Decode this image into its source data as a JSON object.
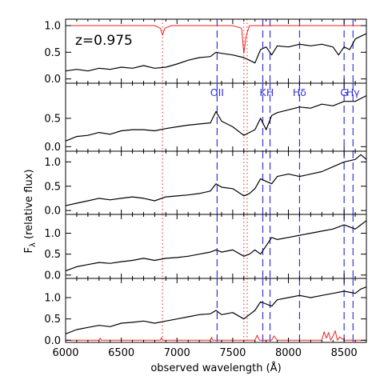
{
  "figure": {
    "redshift_label": "z=0.975",
    "xlabel": "observed wavelength (Å)",
    "ylabel_main": "F",
    "ylabel_sub": "λ",
    "ylabel_rest": " (relative flux)"
  },
  "chart_data": {
    "type": "line",
    "xlim": [
      6000,
      8700
    ],
    "x_ticks": [
      6000,
      6500,
      7000,
      7500,
      8000,
      8500
    ],
    "x_tick_labels": [
      "6000",
      "6500",
      "7000",
      "7500",
      "8000",
      "8500"
    ],
    "xlabel": "observed wavelength (Å)",
    "ylabel": "Fλ (relative flux)",
    "colors": {
      "spectrum": "#000000",
      "sky": "#ee2222",
      "line_marker": "#3333dd",
      "telluric_marker": "#ee2222"
    },
    "spectral_lines": [
      {
        "name": "OII",
        "wavelength": 7360
      },
      {
        "name": "K",
        "wavelength": 7770
      },
      {
        "name": "H",
        "wavelength": 7835
      },
      {
        "name": "Hδ",
        "wavelength": 8100
      },
      {
        "name": "G",
        "wavelength": 8500
      },
      {
        "name": "Hγ",
        "wavelength": 8580
      }
    ],
    "line_label_panel": 2,
    "telluric_lines": [
      6870,
      7600,
      7630
    ],
    "panels": [
      {
        "ylim": [
          -0.08,
          1.12
        ],
        "yticks": [
          0.0,
          0.5,
          1.0
        ],
        "ytick_labels": [
          "0.0",
          "0.5",
          "1.0"
        ],
        "has_redshift_label": true,
        "series": [
          {
            "role": "spectrum",
            "x": [
              6000,
              6100,
              6200,
              6300,
              6400,
              6500,
              6600,
              6700,
              6800,
              6900,
              7000,
              7100,
              7200,
              7300,
              7350,
              7400,
              7500,
              7600,
              7650,
              7700,
              7750,
              7800,
              7850,
              7900,
              8000,
              8100,
              8200,
              8300,
              8400,
              8450,
              8500,
              8550,
              8600,
              8650,
              8700
            ],
            "y": [
              0.15,
              0.18,
              0.15,
              0.2,
              0.18,
              0.22,
              0.2,
              0.25,
              0.2,
              0.22,
              0.28,
              0.35,
              0.4,
              0.42,
              0.5,
              0.48,
              0.45,
              0.4,
              0.35,
              0.3,
              0.55,
              0.6,
              0.45,
              0.62,
              0.6,
              0.65,
              0.62,
              0.65,
              0.6,
              0.45,
              0.6,
              0.55,
              0.75,
              0.8,
              0.85
            ]
          },
          {
            "role": "sky",
            "x": [
              6000,
              6500,
              6800,
              6850,
              6870,
              6890,
              6950,
              7500,
              7580,
              7600,
              7620,
              7650,
              7700,
              8000,
              8500,
              8700
            ],
            "y": [
              1.0,
              1.0,
              1.0,
              0.95,
              0.82,
              0.95,
              1.0,
              1.0,
              0.95,
              0.48,
              0.8,
              1.0,
              1.0,
              1.0,
              1.0,
              1.0
            ]
          }
        ]
      },
      {
        "ylim": [
          -0.08,
          1.12
        ],
        "yticks": [
          0.0,
          0.5
        ],
        "ytick_labels": [
          "0.0",
          "0.5"
        ],
        "series": [
          {
            "role": "spectrum",
            "x": [
              6000,
              6100,
              6200,
              6300,
              6400,
              6500,
              6600,
              6700,
              6800,
              6900,
              7000,
              7100,
              7200,
              7300,
              7350,
              7400,
              7500,
              7600,
              7650,
              7700,
              7750,
              7800,
              7850,
              7900,
              8000,
              8100,
              8200,
              8300,
              8400,
              8500,
              8600,
              8650,
              8700
            ],
            "y": [
              0.1,
              0.18,
              0.2,
              0.25,
              0.22,
              0.28,
              0.3,
              0.3,
              0.28,
              0.32,
              0.35,
              0.38,
              0.4,
              0.42,
              0.62,
              0.45,
              0.35,
              0.2,
              0.25,
              0.3,
              0.5,
              0.3,
              0.55,
              0.6,
              0.65,
              0.7,
              0.68,
              0.75,
              0.72,
              0.8,
              0.8,
              0.85,
              0.9
            ]
          }
        ]
      },
      {
        "ylim": [
          -0.08,
          1.22
        ],
        "yticks": [
          0.0,
          0.5,
          1.0
        ],
        "ytick_labels": [
          "0.0",
          "0.5",
          "1.0"
        ],
        "series": [
          {
            "role": "spectrum",
            "x": [
              6000,
              6100,
              6200,
              6300,
              6400,
              6500,
              6600,
              6700,
              6800,
              6900,
              7000,
              7100,
              7200,
              7300,
              7350,
              7400,
              7500,
              7600,
              7650,
              7700,
              7750,
              7800,
              7850,
              7900,
              8000,
              8100,
              8200,
              8300,
              8400,
              8500,
              8600,
              8650,
              8700
            ],
            "y": [
              0.1,
              0.15,
              0.2,
              0.25,
              0.22,
              0.25,
              0.28,
              0.25,
              0.2,
              0.28,
              0.3,
              0.32,
              0.35,
              0.4,
              0.55,
              0.48,
              0.45,
              0.3,
              0.35,
              0.45,
              0.65,
              0.6,
              0.55,
              0.7,
              0.75,
              0.7,
              0.75,
              0.8,
              0.9,
              1.0,
              1.05,
              1.15,
              1.05
            ]
          }
        ]
      },
      {
        "ylim": [
          -0.08,
          1.45
        ],
        "yticks": [
          0.0,
          0.5,
          1.0
        ],
        "ytick_labels": [
          "0.0",
          "0.5",
          "1.0"
        ],
        "series": [
          {
            "role": "spectrum",
            "x": [
              6000,
              6100,
              6200,
              6300,
              6400,
              6500,
              6600,
              6700,
              6800,
              6900,
              7000,
              7100,
              7200,
              7300,
              7350,
              7400,
              7500,
              7600,
              7650,
              7700,
              7750,
              7800,
              7850,
              7900,
              8000,
              8100,
              8200,
              8300,
              8400,
              8500,
              8600,
              8650,
              8700
            ],
            "y": [
              0.1,
              0.2,
              0.25,
              0.3,
              0.28,
              0.32,
              0.35,
              0.4,
              0.35,
              0.4,
              0.42,
              0.45,
              0.5,
              0.55,
              0.6,
              0.55,
              0.6,
              0.45,
              0.5,
              0.6,
              0.5,
              0.7,
              0.9,
              0.85,
              0.9,
              0.95,
              1.0,
              1.05,
              1.1,
              1.2,
              1.1,
              1.2,
              1.3
            ]
          }
        ]
      },
      {
        "ylim": [
          -0.05,
          1.45
        ],
        "yticks": [
          0.0,
          0.5,
          1.0
        ],
        "ytick_labels": [
          "0.0",
          "0.5",
          "1.0"
        ],
        "series": [
          {
            "role": "spectrum",
            "x": [
              6000,
              6100,
              6200,
              6300,
              6400,
              6500,
              6600,
              6700,
              6800,
              6900,
              7000,
              7100,
              7200,
              7300,
              7350,
              7400,
              7500,
              7600,
              7650,
              7700,
              7750,
              7800,
              7850,
              7900,
              8000,
              8100,
              8200,
              8300,
              8400,
              8500,
              8600,
              8650,
              8700
            ],
            "y": [
              0.15,
              0.25,
              0.3,
              0.35,
              0.32,
              0.4,
              0.42,
              0.45,
              0.4,
              0.45,
              0.5,
              0.55,
              0.6,
              0.62,
              0.7,
              0.6,
              0.65,
              0.5,
              0.6,
              0.7,
              0.9,
              0.85,
              0.8,
              0.95,
              1.0,
              1.05,
              1.0,
              1.05,
              1.1,
              1.15,
              1.1,
              1.2,
              1.25
            ]
          },
          {
            "role": "sky",
            "x": [
              6000,
              6300,
              6310,
              6320,
              6500,
              6850,
              6860,
              6870,
              7000,
              7300,
              7310,
              7320,
              7500,
              7700,
              7720,
              7740,
              7800,
              7850,
              7870,
              7900,
              8000,
              8300,
              8320,
              8340,
              8360,
              8380,
              8400,
              8420,
              8440,
              8460,
              8500,
              8700
            ],
            "y": [
              0.0,
              0.0,
              0.05,
              0.0,
              0.0,
              0.0,
              0.06,
              0.0,
              0.0,
              0.0,
              0.07,
              0.0,
              0.0,
              0.0,
              0.12,
              0.0,
              0.0,
              0.0,
              0.1,
              0.0,
              0.0,
              0.0,
              0.2,
              0.05,
              0.18,
              0.0,
              0.1,
              0.22,
              0.0,
              0.08,
              0.0,
              0.0
            ]
          }
        ]
      }
    ]
  }
}
